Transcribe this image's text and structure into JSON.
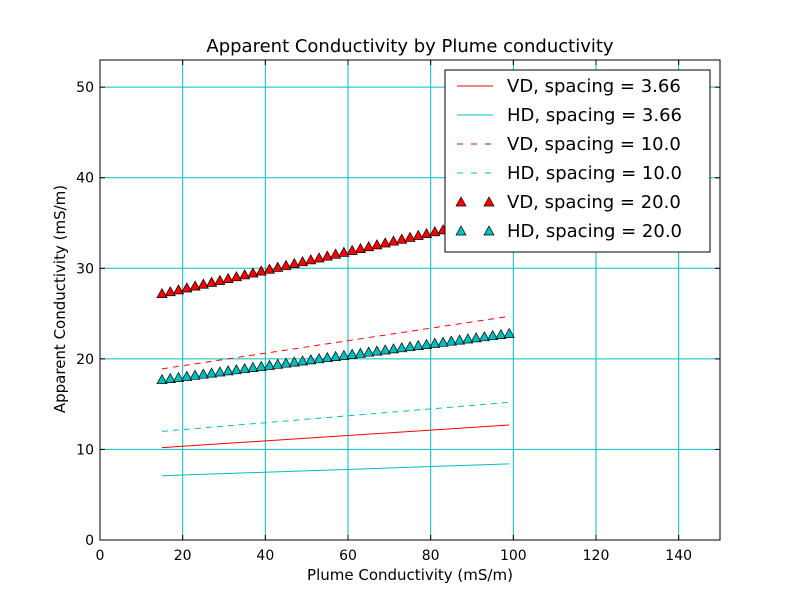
{
  "chart_data": {
    "type": "line",
    "title": "Apparent Conductivity by Plume conductivity",
    "xlabel": "Plume Conductivity (mS/m)",
    "ylabel": "Apparent Conductivity (mS/m)",
    "xlim": [
      0,
      150
    ],
    "ylim": [
      0,
      53
    ],
    "xticks": [
      0,
      20,
      40,
      60,
      80,
      100,
      120,
      140
    ],
    "yticks": [
      0,
      10,
      20,
      30,
      40,
      50
    ],
    "grid": true,
    "legend": "top-right",
    "x_range": [
      15,
      99
    ],
    "marker_spacing": 2,
    "series": [
      {
        "name": "VD, spacing = 3.66",
        "start": [
          15,
          10.2
        ],
        "end": [
          99,
          12.7
        ],
        "color": "#ff0000",
        "style": "solid"
      },
      {
        "name": "HD, spacing = 3.66",
        "start": [
          15,
          7.1
        ],
        "end": [
          99,
          8.4
        ],
        "color": "#00bfbf",
        "style": "solid"
      },
      {
        "name": "VD, spacing = 10.0",
        "start": [
          15,
          18.9
        ],
        "end": [
          99,
          24.7
        ],
        "color": "#ff0000",
        "style": "dashed"
      },
      {
        "name": "HD, spacing = 10.0",
        "start": [
          15,
          12.0
        ],
        "end": [
          99,
          15.2
        ],
        "color": "#00bfbf",
        "style": "dashed"
      },
      {
        "name": "VD, spacing = 20.0",
        "start": [
          15,
          27.2
        ],
        "end": [
          99,
          35.9
        ],
        "color": "#ff0000",
        "style": "triangle"
      },
      {
        "name": "HD, spacing = 20.0",
        "start": [
          15,
          17.7
        ],
        "end": [
          99,
          22.8
        ],
        "color": "#00bfbf",
        "style": "triangle"
      }
    ]
  }
}
